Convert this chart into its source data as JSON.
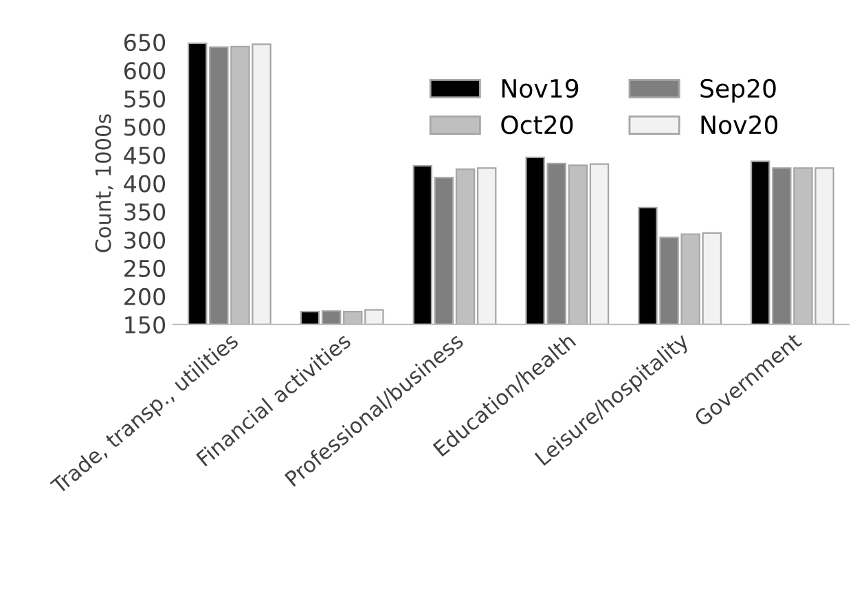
{
  "chart_data": {
    "type": "bar",
    "ylabel": "Count, 1000s",
    "categories": [
      "Trade, transp., utilities",
      "Financial activities",
      "Professional/business",
      "Education/health",
      "Leisure/hospitality",
      "Government"
    ],
    "series": [
      {
        "name": "Nov19",
        "color": "#000000",
        "values": [
          648,
          173,
          431,
          446,
          357,
          439
        ]
      },
      {
        "name": "Sep20",
        "color": "#7f7f7f",
        "values": [
          641,
          174,
          410,
          435,
          304,
          427
        ]
      },
      {
        "name": "Oct20",
        "color": "#bfbfbf",
        "values": [
          642,
          173,
          425,
          432,
          310,
          427
        ]
      },
      {
        "name": "Nov20",
        "color": "#f2f2f2",
        "values": [
          646,
          176,
          427,
          434,
          312,
          427
        ]
      }
    ],
    "ylim": [
      150,
      650
    ],
    "yticks": [
      150,
      200,
      250,
      300,
      350,
      400,
      450,
      500,
      550,
      600,
      650
    ],
    "grid": false,
    "legend": "top right"
  }
}
